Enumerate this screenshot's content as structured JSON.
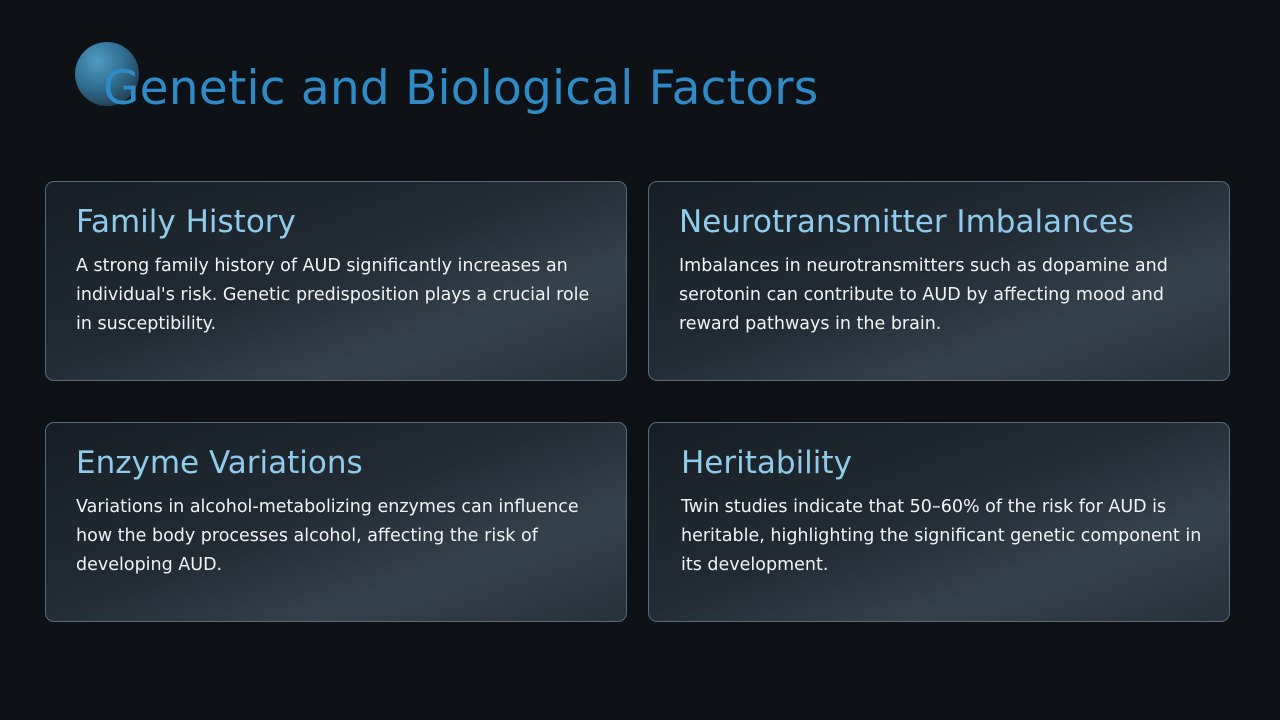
{
  "slide": {
    "title": "Genetic and Biological Factors",
    "cards": [
      {
        "title": "Family History",
        "text": "A strong family history of AUD significantly increases an individual's risk. Genetic predisposition plays a crucial role in susceptibility."
      },
      {
        "title": "Neurotransmitter Imbalances",
        "text": "Imbalances in neurotransmitters such as dopamine and serotonin can contribute to AUD by affecting mood and reward pathways in the brain."
      },
      {
        "title": "Enzyme Variations",
        "text": "Variations in alcohol-metabolizing enzymes can influence how the body processes alcohol, affecting the risk of developing AUD."
      },
      {
        "title": "Heritability",
        "text": "Twin studies indicate that 50–60% of the risk for AUD is heritable, highlighting the significant genetic component in its development."
      }
    ]
  },
  "colors": {
    "background": "#0e1216",
    "title": "#2e8bc5",
    "card_title": "#8fcbeb",
    "card_text": "#f1f3f5",
    "card_border": "#58697a"
  }
}
